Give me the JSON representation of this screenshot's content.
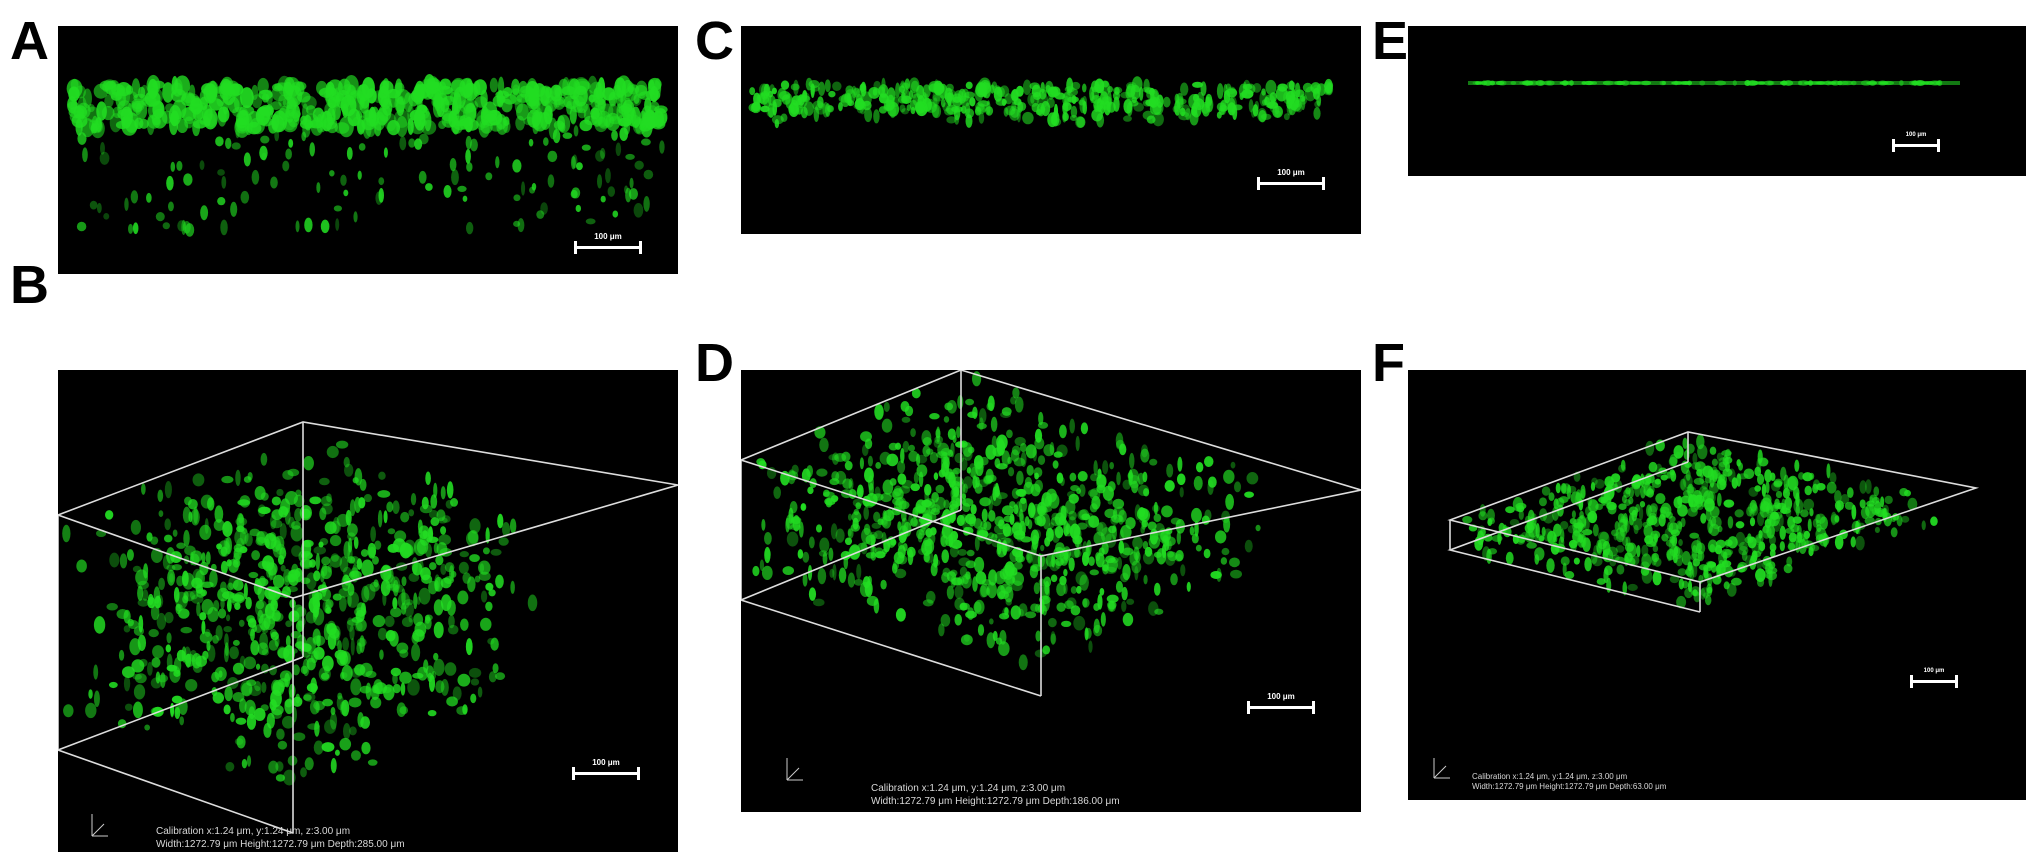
{
  "panels": [
    {
      "id": "A",
      "label": "A",
      "scale_bar": "100 μm"
    },
    {
      "id": "B",
      "label": "B",
      "scale_bar": "100 μm",
      "calibration_line1": "Calibration x:1.24 μm, y:1.24 μm, z:3.00 μm",
      "calibration_line2": "Width:1272.79 μm Height:1272.79 μm Depth:285.00 μm"
    },
    {
      "id": "C",
      "label": "C",
      "scale_bar": "100 μm"
    },
    {
      "id": "D",
      "label": "D",
      "scale_bar": "100 μm",
      "calibration_line1": "Calibration x:1.24 μm, y:1.24 μm, z:3.00 μm",
      "calibration_line2": "Width:1272.79 μm Height:1272.79 μm Depth:186.00 μm"
    },
    {
      "id": "E",
      "label": "E",
      "scale_bar": "100 μm"
    },
    {
      "id": "F",
      "label": "F",
      "scale_bar": "100 μm",
      "calibration_line1": "Calibration x:1.24 μm, y:1.24 μm, z:3.00 μm",
      "calibration_line2": "Width:1272.79 μm Height:1272.79 μm Depth:63.00 μm"
    }
  ],
  "colors": {
    "background": "#000000",
    "fluorescence": "#22dd22",
    "box_outline": "#dddddd"
  }
}
